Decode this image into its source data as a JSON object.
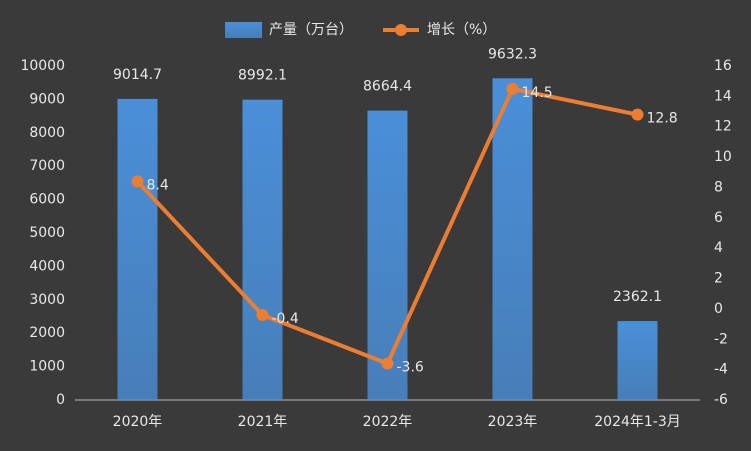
{
  "chart_data": {
    "type": "bar",
    "categories": [
      "2020年",
      "2021年",
      "2022年",
      "2023年",
      "2024年1-3月"
    ],
    "series": [
      {
        "name": "产量（万台）",
        "type": "bar",
        "color": "#4a8fd8",
        "values": [
          9014.7,
          8992.1,
          8664.4,
          9632.3,
          2362.1
        ]
      },
      {
        "name": "增长（%）",
        "type": "line",
        "axis": "y2",
        "color": "#ed7d31",
        "values": [
          8.4,
          -0.4,
          -3.6,
          14.5,
          12.8
        ]
      }
    ],
    "ylim": [
      0,
      10000
    ],
    "yticks": [
      0,
      1000,
      2000,
      3000,
      4000,
      5000,
      6000,
      7000,
      8000,
      9000,
      10000
    ],
    "y2lim": [
      -6,
      16
    ],
    "y2ticks": [
      -6,
      -4,
      -2,
      0,
      2,
      4,
      6,
      8,
      10,
      12,
      14,
      16
    ],
    "grid": false
  }
}
